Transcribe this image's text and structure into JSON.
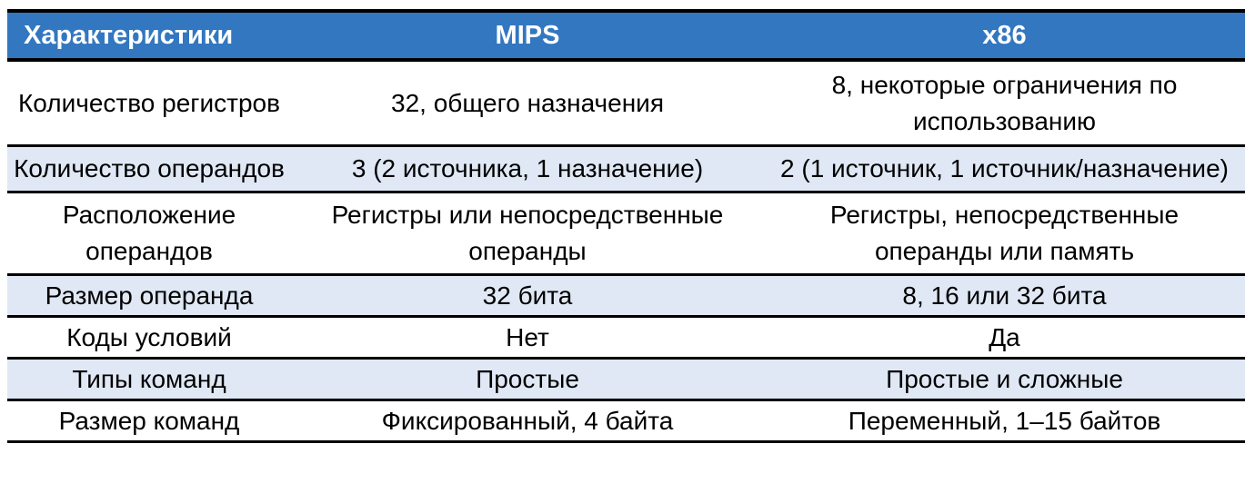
{
  "headers": [
    "Характеристики",
    "MIPS",
    "x86"
  ],
  "rows": [
    [
      "Количество регистров",
      "32, общего назначения",
      "8, некоторые ограничения по использованию"
    ],
    [
      "Количество операндов",
      "3 (2 источника, 1 назначение)",
      "2 (1 источник, 1 источник/назначение)"
    ],
    [
      "Расположение операндов",
      "Регистры или непосредственные операнды",
      "Регистры, непосредственные операнды или память"
    ],
    [
      "Размер операнда",
      "32 бита",
      "8, 16 или 32 бита"
    ],
    [
      "Коды условий",
      "Нет",
      "Да"
    ],
    [
      "Типы команд",
      "Простые",
      "Простые и сложные"
    ],
    [
      "Размер команд",
      "Фиксированный, 4 байта",
      "Переменный, 1–15 байтов"
    ]
  ],
  "colors": {
    "header": "#3277c0",
    "alt_row": "#e0e8f5"
  }
}
